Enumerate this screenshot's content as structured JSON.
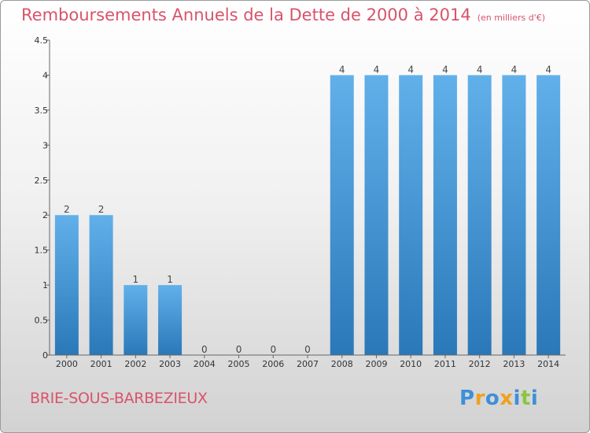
{
  "header": {
    "title": "Remboursements Annuels de la Dette de 2000 à 2014",
    "subtitle": "(en milliers d'€)"
  },
  "footer": {
    "commune": "BRIE-SOUS-BARBEZIEUX",
    "brand_letters": [
      {
        "ch": "P",
        "color": "#3e8fd8"
      },
      {
        "ch": "r",
        "color": "#f0a020"
      },
      {
        "ch": "o",
        "color": "#3e8fd8"
      },
      {
        "ch": "x",
        "color": "#f0a020"
      },
      {
        "ch": "i",
        "color": "#3e8fd8"
      },
      {
        "ch": "t",
        "color": "#8cc63f"
      },
      {
        "ch": "i",
        "color": "#3e8fd8"
      }
    ]
  },
  "chart_data": {
    "type": "bar",
    "title": "Remboursements Annuels de la Dette de 2000 à 2014",
    "subtitle": "(en milliers d'€)",
    "categories": [
      "2000",
      "2001",
      "2002",
      "2003",
      "2004",
      "2005",
      "2006",
      "2007",
      "2008",
      "2009",
      "2010",
      "2011",
      "2012",
      "2013",
      "2014"
    ],
    "values": [
      2,
      2,
      1,
      1,
      0,
      0,
      0,
      0,
      4,
      4,
      4,
      4,
      4,
      4,
      4
    ],
    "value_labels": [
      "2",
      "2",
      "1",
      "1",
      "0",
      "0",
      "0",
      "0",
      "4",
      "4",
      "4",
      "4",
      "4",
      "4",
      "4"
    ],
    "y_ticks": [
      {
        "value": 0,
        "label": "0"
      },
      {
        "value": 0.5,
        "label": "0.5"
      },
      {
        "value": 1,
        "label": "1"
      },
      {
        "value": 1.5,
        "label": "1.5"
      },
      {
        "value": 2,
        "label": "2"
      },
      {
        "value": 2.5,
        "label": "2.5"
      },
      {
        "value": 3,
        "label": "3"
      },
      {
        "value": 3.5,
        "label": "3.5"
      },
      {
        "value": 4,
        "label": "4"
      },
      {
        "value": 4.5,
        "label": "4.5"
      }
    ],
    "ylim": [
      0,
      4.5
    ],
    "xlabel": "",
    "ylabel": "",
    "grid": false,
    "bar_color_top": "#62b0ea",
    "bar_color_bottom": "#2a78b8"
  }
}
